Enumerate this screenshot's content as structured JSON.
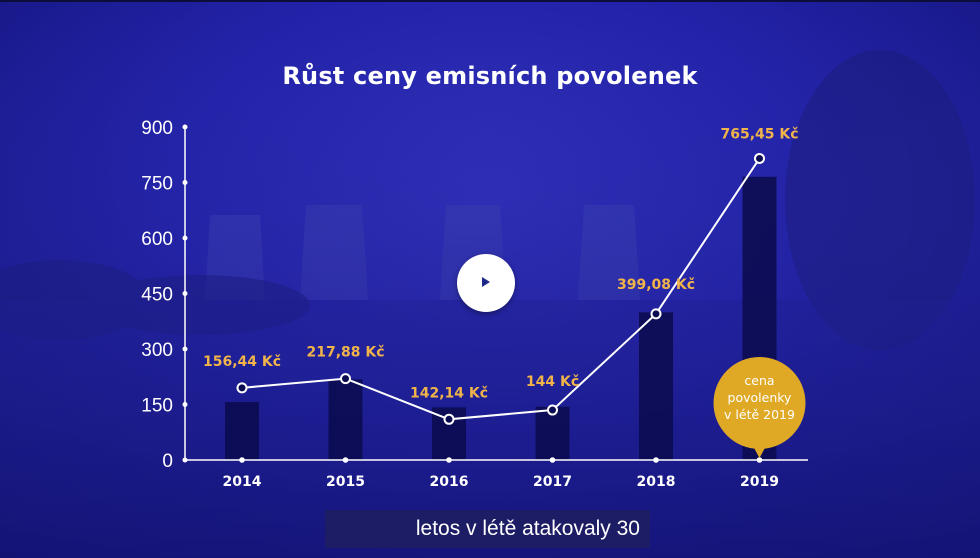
{
  "video": {
    "subtitle": "letos v létě atakovaly 30"
  },
  "colors": {
    "background": "#2222a8",
    "bar": "#0c0c52",
    "line": "#ffffff",
    "label": "#f0b44a",
    "badge": "#e0a925",
    "axis": "#ffffff"
  },
  "icons": {
    "play": "play-icon"
  },
  "badge": {
    "line1": "cena",
    "line2": "povolenky",
    "line3": "v létě 2019"
  },
  "chart_data": {
    "type": "bar",
    "title": "Růst ceny emisních povolenek",
    "xlabel": "",
    "ylabel": "",
    "categories": [
      "2014",
      "2015",
      "2016",
      "2017",
      "2018",
      "2019"
    ],
    "series": [
      {
        "values": [
          156.44,
          217.88,
          142.14,
          144,
          399.08,
          765.45
        ]
      }
    ],
    "line_values": [
      195,
      220,
      110,
      135,
      395,
      815
    ],
    "data_labels": [
      "156,44 Kč",
      "217,88 Kč",
      "142,14 Kč",
      "144 Kč",
      "399,08 Kč",
      "765,45 Kč"
    ],
    "ylim": [
      0,
      900
    ],
    "yticks": [
      0,
      150,
      300,
      450,
      600,
      750,
      900
    ],
    "grid": false,
    "legend": "none"
  }
}
